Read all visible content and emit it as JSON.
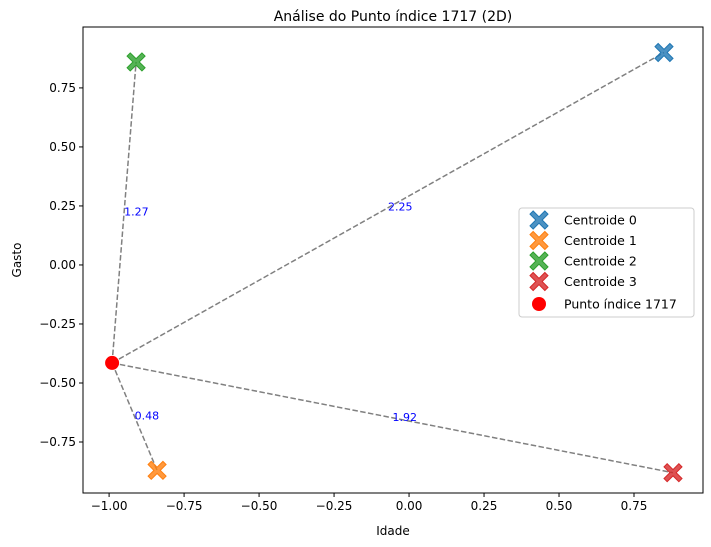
{
  "chart_data": {
    "type": "scatter",
    "title": "Análise do Punto índice 1717 (2D)",
    "xlabel": "Idade",
    "ylabel": "Gasto",
    "xlim": [
      -1.087,
      0.98
    ],
    "ylim": [
      -0.966,
      1.008
    ],
    "xticks": [
      -1.0,
      -0.75,
      -0.5,
      -0.25,
      0.0,
      0.25,
      0.5,
      0.75
    ],
    "xtick_labels": [
      "−1.00",
      "−0.75",
      "−0.50",
      "−0.25",
      "0.00",
      "0.25",
      "0.50",
      "0.75"
    ],
    "yticks": [
      -0.75,
      -0.5,
      -0.25,
      0.0,
      0.25,
      0.5,
      0.75
    ],
    "ytick_labels": [
      "−0.75",
      "−0.50",
      "−0.25",
      "0.00",
      "0.25",
      "0.50",
      "0.75"
    ],
    "grid": false,
    "legend_placement": "center-right",
    "point": {
      "name": "Punto índice 1717",
      "x": -0.99,
      "y": -0.415,
      "color": "#ff0000"
    },
    "centroids": [
      {
        "name": "Centroide 0",
        "x": 0.85,
        "y": 0.9,
        "color": "#1f77b4",
        "distance": "2.25"
      },
      {
        "name": "Centroide 1",
        "x": -0.84,
        "y": -0.87,
        "color": "#ff7f0e",
        "distance": "0.48"
      },
      {
        "name": "Centroide 2",
        "x": -0.91,
        "y": 0.86,
        "color": "#2ca02c",
        "distance": "1.27"
      },
      {
        "name": "Centroide 3",
        "x": 0.88,
        "y": -0.88,
        "color": "#d62728",
        "distance": "1.92"
      }
    ],
    "line_color": "#808080",
    "distance_label_color": "#0000ff"
  }
}
